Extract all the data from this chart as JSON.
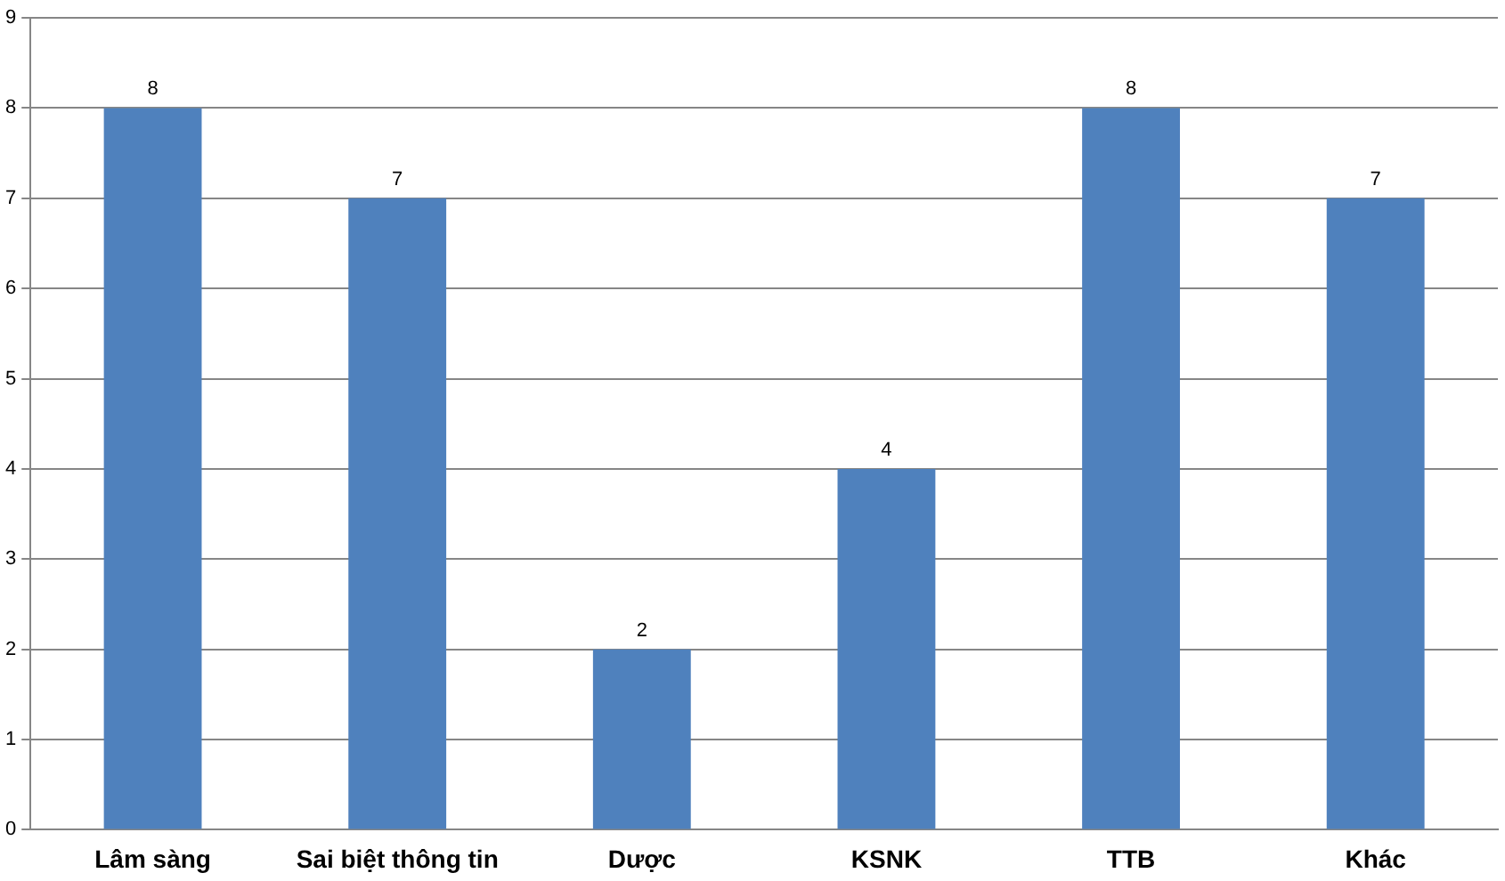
{
  "chart_data": {
    "type": "bar",
    "categories": [
      "Lâm sàng",
      "Sai biệt thông tin",
      "Dược",
      "KSNK",
      "TTB",
      "Khác"
    ],
    "values": [
      8,
      7,
      2,
      4,
      8,
      7
    ],
    "color": "#4f81bd",
    "ylim": [
      0,
      9
    ],
    "yticks": [
      0,
      1,
      2,
      3,
      4,
      5,
      6,
      7,
      8,
      9
    ],
    "grid": "y",
    "data_labels": true,
    "legend": false
  }
}
